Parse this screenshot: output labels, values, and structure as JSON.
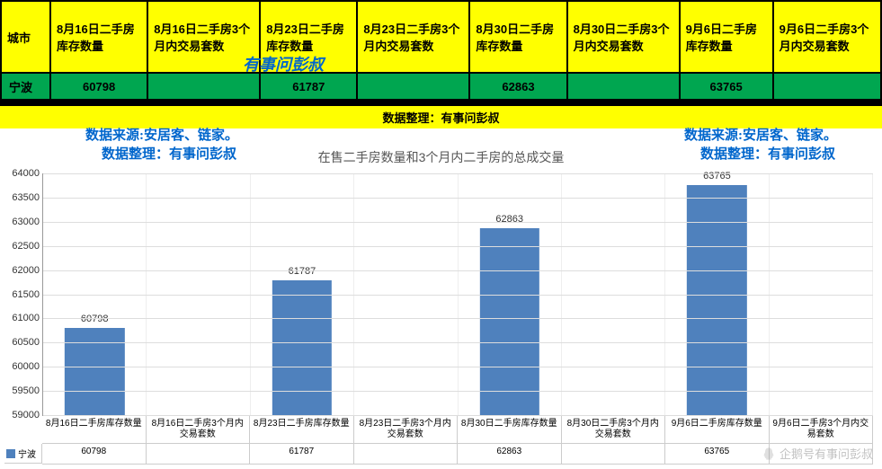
{
  "table": {
    "headers": [
      "城市",
      "8月16日二手房库存数量",
      "8月16日二手房3个月内交易套数",
      "8月23日二手房库存数量",
      "8月23日二手房3个月内交易套数",
      "8月30日二手房库存数量",
      "8月30日二手房3个月内交易套数",
      "9月6日二手房库存数量",
      "9月6日二手房3个月内交易套数"
    ],
    "row_city": "宁波",
    "row_values": [
      "60798",
      "",
      "61787",
      "",
      "62863",
      "",
      "63765",
      ""
    ]
  },
  "watermark_header": "有事问彭叔",
  "banner": "数据整理：有事问彭叔",
  "source_line1": "数据来源:安居客、链家。",
  "source_line2": "数据整理：有事问彭叔",
  "chart": {
    "title": "在售二手房数量和3个月内二手房的总成交量",
    "type": "bar",
    "ylim": [
      59000,
      64000
    ],
    "ytick_step": 500,
    "bar_color": "#4f81bd",
    "grid_color": "#dddddd",
    "background_color": "#ffffff",
    "label_fontsize": 10,
    "categories": [
      "8月16日二手房库存数量",
      "8月16日二手房3个月内交易套数",
      "8月23日二手房库存数量",
      "8月23日二手房3个月内交易套数",
      "8月30日二手房库存数量",
      "8月30日二手房3个月内交易套数",
      "9月6日二手房库存数量",
      "9月6日二手房3个月内交易套数"
    ],
    "values": [
      60798,
      null,
      61787,
      null,
      62863,
      null,
      63765,
      null
    ],
    "legend": "宁波"
  },
  "footer_watermark": "企鹅号有事问彭叔"
}
